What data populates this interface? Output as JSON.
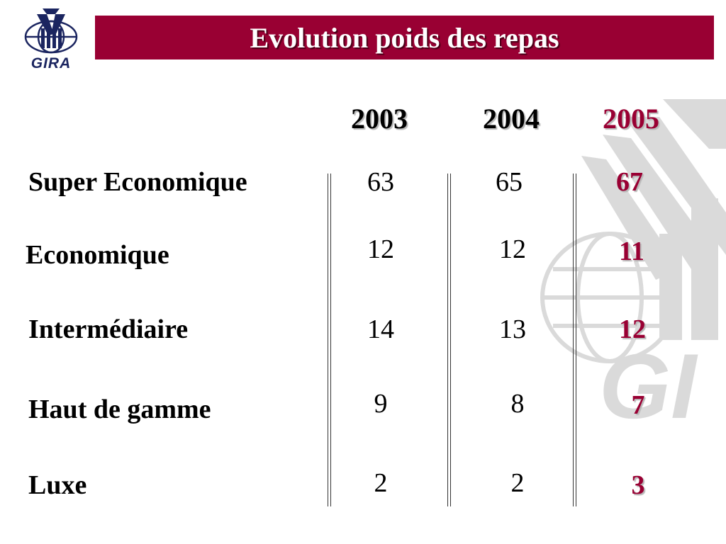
{
  "logo": {
    "text": "GIRA",
    "icon": "globe-building-logo"
  },
  "watermark": {
    "text": "GI"
  },
  "title": "Evolution poids des repas",
  "colors": {
    "title_bar": "#990033",
    "highlight": "#990033",
    "logo": "#1b2560"
  },
  "table": {
    "years": [
      "2003",
      "2004",
      "2005"
    ],
    "rows": [
      {
        "label": "Super Economique",
        "values": [
          "63",
          "65",
          "67"
        ]
      },
      {
        "label": "Economique",
        "values": [
          "12",
          "12",
          "11"
        ]
      },
      {
        "label": "Intermédiaire",
        "values": [
          "14",
          "13",
          "12"
        ]
      },
      {
        "label": "Haut de gamme",
        "values": [
          "9",
          "8",
          "7"
        ]
      },
      {
        "label": "Luxe",
        "values": [
          "2",
          "2",
          "3"
        ]
      }
    ]
  }
}
